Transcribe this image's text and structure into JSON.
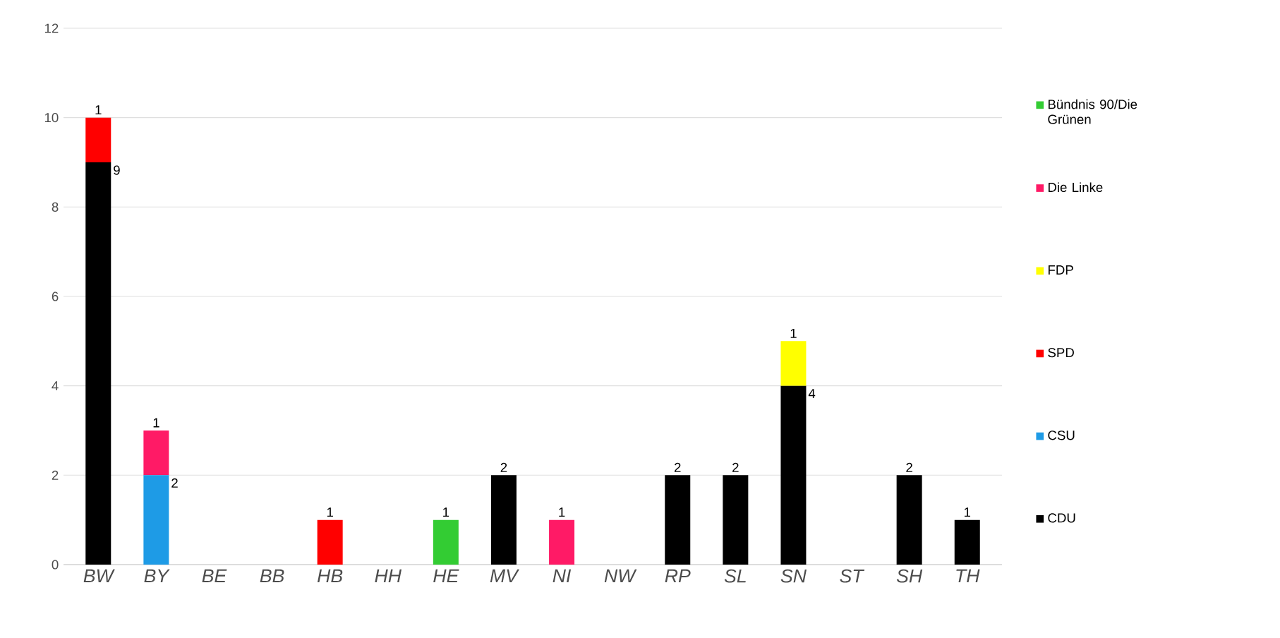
{
  "chart_data": {
    "type": "bar",
    "stacked": true,
    "categories": [
      "BW",
      "BY",
      "BE",
      "BB",
      "HB",
      "HH",
      "HE",
      "MV",
      "NI",
      "NW",
      "RP",
      "SL",
      "SN",
      "ST",
      "SH",
      "TH"
    ],
    "series": [
      {
        "name": "CDU",
        "color": "#000000",
        "values": [
          9,
          null,
          null,
          null,
          null,
          null,
          null,
          2,
          null,
          null,
          2,
          2,
          4,
          null,
          2,
          1
        ]
      },
      {
        "name": "CSU",
        "color": "#1e9be6",
        "values": [
          null,
          2,
          null,
          null,
          null,
          null,
          null,
          null,
          null,
          null,
          null,
          null,
          null,
          null,
          null,
          null
        ]
      },
      {
        "name": "SPD",
        "color": "#ff0000",
        "values": [
          1,
          null,
          null,
          null,
          1,
          null,
          null,
          null,
          null,
          null,
          null,
          null,
          null,
          null,
          null,
          null
        ]
      },
      {
        "name": "FDP",
        "color": "#ffff00",
        "values": [
          null,
          null,
          null,
          null,
          null,
          null,
          null,
          null,
          null,
          null,
          null,
          null,
          1,
          null,
          null,
          null
        ]
      },
      {
        "name": "Die Linke",
        "color": "#ff1a66",
        "values": [
          null,
          1,
          null,
          null,
          null,
          null,
          null,
          null,
          1,
          null,
          null,
          null,
          null,
          null,
          null,
          null
        ]
      },
      {
        "name": "Bündnis 90/Die Grünen",
        "color": "#33cc33",
        "values": [
          null,
          null,
          null,
          null,
          null,
          null,
          1,
          null,
          null,
          null,
          null,
          null,
          null,
          null,
          null,
          null
        ]
      }
    ],
    "ylim": [
      0,
      12
    ],
    "yticks": [
      0,
      2,
      4,
      6,
      8,
      10,
      12
    ],
    "grid": "y",
    "legend": "right",
    "data_labels": true
  }
}
